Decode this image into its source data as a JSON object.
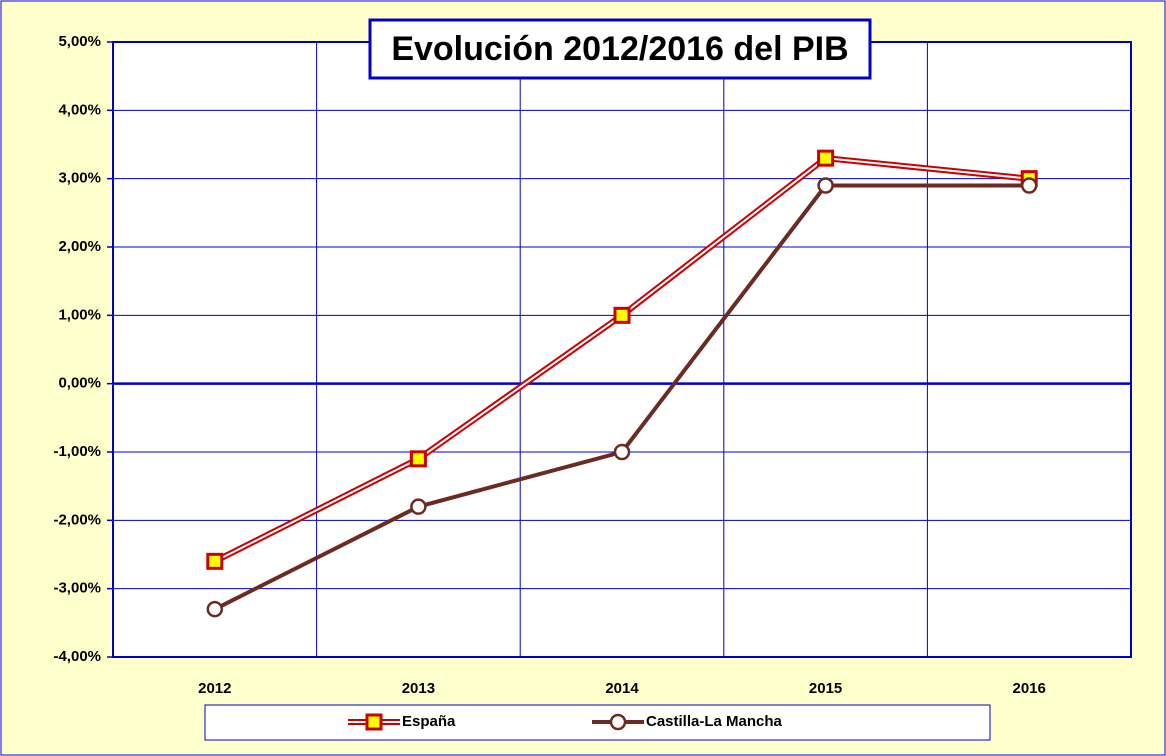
{
  "chart_data": {
    "type": "line",
    "title": "Evolución 2012/2016 del PIB",
    "categories": [
      "2012",
      "2013",
      "2014",
      "2015",
      "2016"
    ],
    "series": [
      {
        "name": "España",
        "color": "#cc0000",
        "marker_fill": "#ffff00",
        "values": [
          -2.6,
          -1.1,
          1.0,
          3.3,
          3.0
        ]
      },
      {
        "name": "Castilla-La Mancha",
        "color": "#6b2a22",
        "marker_fill": "#ffffff",
        "values": [
          -3.3,
          -1.8,
          -1.0,
          2.9,
          2.9
        ]
      }
    ],
    "ylim": [
      -4,
      5
    ],
    "yticks": [
      {
        "value": -4,
        "label": "-4,00%"
      },
      {
        "value": -3,
        "label": "-3,00%"
      },
      {
        "value": -2,
        "label": "-2,00%"
      },
      {
        "value": -1,
        "label": "-1,00%"
      },
      {
        "value": 0,
        "label": "0,00%"
      },
      {
        "value": 1,
        "label": "1,00%"
      },
      {
        "value": 2,
        "label": "2,00%"
      },
      {
        "value": 3,
        "label": "3,00%"
      },
      {
        "value": 4,
        "label": "4,00%"
      },
      {
        "value": 5,
        "label": "5,00%"
      }
    ],
    "grid": true,
    "grid_color": "#0000cc",
    "legend": "bottom"
  }
}
